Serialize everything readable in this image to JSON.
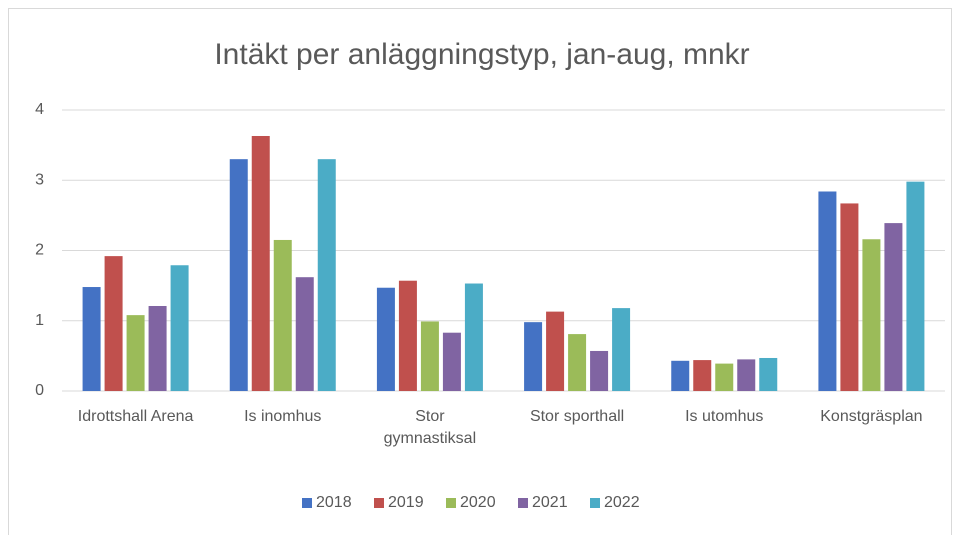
{
  "chart_data": {
    "type": "bar",
    "title": "Intäkt per anläggningstyp, jan-aug, mnkr",
    "categories": [
      "Idrottshall Arena",
      "Is inomhus",
      "Stor gymnastiksal",
      "Stor sporthall",
      "Is utomhus",
      "Konstgräsplan"
    ],
    "series": [
      {
        "name": "2018",
        "color": "#4472c4",
        "values": [
          1.48,
          3.3,
          1.47,
          0.98,
          0.43,
          2.84
        ]
      },
      {
        "name": "2019",
        "color": "#c0504d",
        "values": [
          1.92,
          3.63,
          1.57,
          1.13,
          0.44,
          2.67
        ]
      },
      {
        "name": "2020",
        "color": "#9bbb59",
        "values": [
          1.08,
          2.15,
          0.99,
          0.81,
          0.39,
          2.16
        ]
      },
      {
        "name": "2021",
        "color": "#8064a2",
        "values": [
          1.21,
          1.62,
          0.83,
          0.57,
          0.45,
          2.39
        ]
      },
      {
        "name": "2022",
        "color": "#4bacc6",
        "values": [
          1.79,
          3.3,
          1.53,
          1.18,
          0.47,
          2.98
        ]
      }
    ],
    "ylim": [
      0,
      4
    ],
    "yticks": [
      0,
      1,
      2,
      3,
      4
    ],
    "grid": true,
    "legend": "bottom"
  }
}
